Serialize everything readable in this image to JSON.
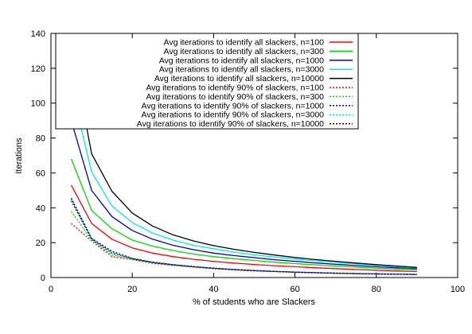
{
  "chart_data": {
    "type": "line",
    "title": "",
    "xlabel": "% of students who are Slackers",
    "ylabel": "Iterations",
    "xlim": [
      0,
      100
    ],
    "ylim": [
      0,
      140
    ],
    "xticks": [
      0,
      20,
      40,
      60,
      80,
      100
    ],
    "yticks": [
      0,
      20,
      40,
      60,
      80,
      100,
      120,
      140
    ],
    "grid": false,
    "legend_position": "top-right",
    "x": [
      5,
      10,
      15,
      20,
      25,
      30,
      35,
      40,
      45,
      50,
      55,
      60,
      65,
      70,
      75,
      80,
      85,
      90
    ],
    "series": [
      {
        "name": "Avg iterations to identify all slackers, n=100",
        "color": "#ff0000",
        "dash": "solid",
        "values": [
          53,
          31,
          22,
          17,
          14,
          12,
          10.5,
          9.3,
          8.3,
          7.5,
          6.8,
          6.2,
          5.6,
          5.1,
          4.6,
          4.2,
          3.8,
          3.4
        ]
      },
      {
        "name": "Avg iterations to identify all slackers, n=300",
        "color": "#00dd00",
        "dash": "solid",
        "values": [
          68,
          38.5,
          28,
          21.5,
          18,
          15.5,
          13.5,
          12,
          10.8,
          9.8,
          8.8,
          8,
          7.3,
          6.6,
          6,
          5.4,
          4.9,
          4.4
        ]
      },
      {
        "name": "Avg iterations to identify all slackers, n=1000",
        "color": "#0000cc",
        "dash": "solid",
        "values": [
          90,
          50,
          35,
          27,
          22,
          18.5,
          16,
          14,
          12.6,
          11.4,
          10.2,
          9.3,
          8.4,
          7.6,
          6.9,
          6.2,
          5.6,
          5
        ]
      },
      {
        "name": "Avg iterations to identify all slackers, n=3000",
        "color": "#00eeee",
        "dash": "solid",
        "values": [
          109,
          60.5,
          41,
          31.5,
          25.5,
          21.5,
          18.5,
          16.5,
          14.6,
          13,
          11.8,
          10.6,
          9.6,
          8.7,
          7.8,
          7,
          6.2,
          5.5
        ]
      },
      {
        "name": "Avg iterations to identify all slackers, n=10000",
        "color": "#000000",
        "dash": "solid",
        "values": [
          132.5,
          71,
          49.5,
          37,
          29.5,
          24.5,
          21,
          18.3,
          16.2,
          14.4,
          12.9,
          11.5,
          10.3,
          9.3,
          8.3,
          7.4,
          6.6,
          5.8
        ]
      },
      {
        "name": "Avg iterations to identify 90% of slackers, n=100",
        "color": "#ff0000",
        "dash": "dotted",
        "values": [
          31,
          21,
          12,
          10.3,
          8.2,
          7,
          6,
          5.1,
          4.4,
          3.8,
          3.4,
          3,
          2.7,
          2.4,
          2.2,
          2,
          1.9,
          1.8
        ]
      },
      {
        "name": "Avg iterations to identify 90% of slackers, n=300",
        "color": "#00dd00",
        "dash": "dotted",
        "values": [
          38,
          21.5,
          13,
          10.6,
          8.5,
          7.2,
          6.1,
          5.2,
          4.5,
          3.9,
          3.5,
          3.1,
          2.8,
          2.5,
          2.3,
          2.1,
          1.9,
          1.8
        ]
      },
      {
        "name": "Avg iterations to identify 90% of slackers, n=1000",
        "color": "#0000cc",
        "dash": "dotted",
        "values": [
          44,
          22,
          14,
          10.8,
          8.7,
          7.3,
          6.2,
          5.3,
          4.6,
          4,
          3.5,
          3.1,
          2.8,
          2.5,
          2.3,
          2.1,
          1.9,
          1.8
        ]
      },
      {
        "name": "Avg iterations to identify 90% of slackers, n=3000",
        "color": "#00eeee",
        "dash": "dotted",
        "values": [
          45,
          22.5,
          14.5,
          11,
          8.8,
          7.4,
          6.3,
          5.4,
          4.6,
          4,
          3.5,
          3.1,
          2.8,
          2.5,
          2.3,
          2.1,
          1.9,
          1.8
        ]
      },
      {
        "name": "Avg iterations to identify 90% of slackers, n=10000",
        "color": "#000000",
        "dash": "dotted",
        "values": [
          45.5,
          22.5,
          15,
          11,
          8.8,
          7.4,
          6.3,
          5.4,
          4.6,
          4,
          3.5,
          3.1,
          2.8,
          2.5,
          2.3,
          2.1,
          1.9,
          1.8
        ]
      }
    ]
  }
}
